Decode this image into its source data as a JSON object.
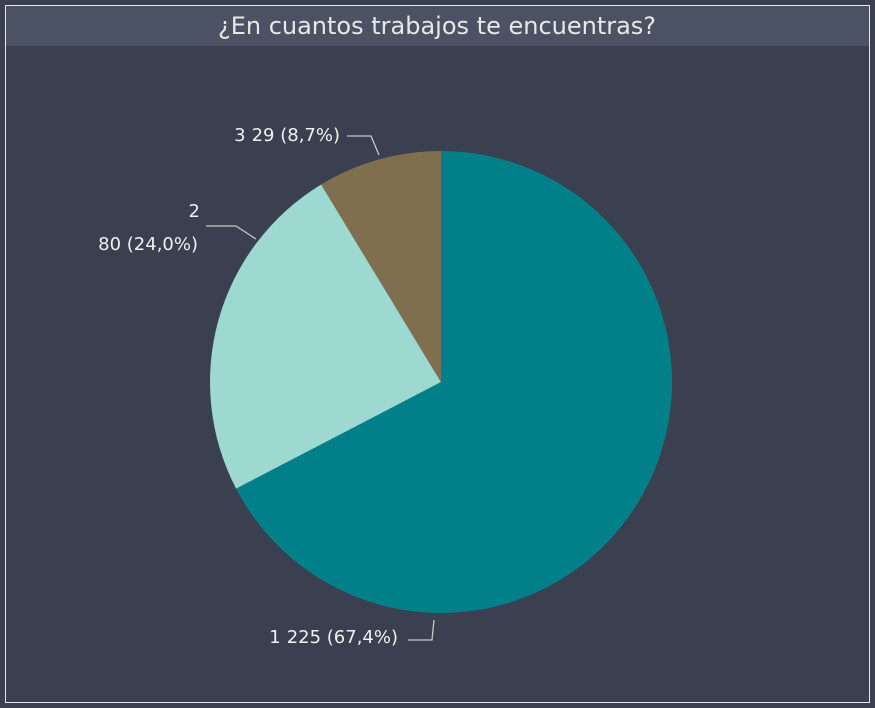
{
  "chart_data": {
    "type": "pie",
    "title": "¿En cuantos trabajos te encuentras?",
    "categories": [
      "1",
      "2",
      "3"
    ],
    "values": [
      225,
      80,
      29
    ],
    "value_labels": [
      "225 (67,4%)",
      "80 (24,0%)",
      "29 (8,7%)"
    ],
    "colors": [
      "#01808a",
      "#9dd8d1",
      "#7f6f4f"
    ]
  }
}
